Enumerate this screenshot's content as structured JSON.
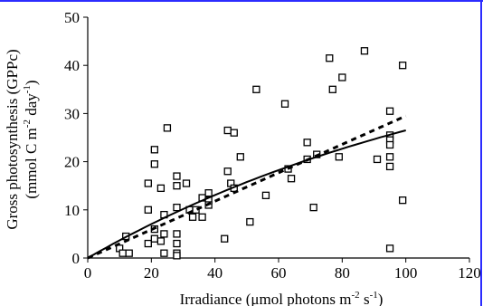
{
  "chart_data": {
    "type": "scatter",
    "xlabel_main": "Irradiance (μmol photons m",
    "xlabel_exp1": "-2",
    "xlabel_mid": " s",
    "xlabel_exp2": "-1",
    "xlabel_end": ")",
    "ylabel_line1": "Gross photosynthesis (GPPc)",
    "ylabel_line2_main": "(mmol C m",
    "ylabel_line2_exp1": "-2",
    "ylabel_line2_mid": " day",
    "ylabel_line2_exp2": "-1",
    "ylabel_line2_end": ")",
    "xlim": [
      0,
      120
    ],
    "ylim": [
      0,
      50
    ],
    "x_ticks": [
      0,
      20,
      40,
      60,
      80,
      100,
      120
    ],
    "y_ticks": [
      0,
      10,
      20,
      30,
      40,
      50
    ],
    "x_tick_labels": [
      "0",
      "20",
      "40",
      "60",
      "80",
      "100",
      "120"
    ],
    "y_tick_labels": [
      "0",
      "10",
      "20",
      "30",
      "40",
      "50"
    ],
    "grid": false,
    "legend": "none",
    "marker": "open-square",
    "points": [
      [
        10,
        2
      ],
      [
        11,
        1
      ],
      [
        12,
        4.5
      ],
      [
        13,
        1
      ],
      [
        19,
        15.5
      ],
      [
        19,
        10
      ],
      [
        19,
        3
      ],
      [
        21,
        4
      ],
      [
        21,
        6
      ],
      [
        21,
        19.5
      ],
      [
        21,
        22.5
      ],
      [
        23,
        14.5
      ],
      [
        23,
        3.5
      ],
      [
        24,
        5
      ],
      [
        24,
        9
      ],
      [
        24,
        1
      ],
      [
        25,
        27
      ],
      [
        28,
        17
      ],
      [
        28,
        15
      ],
      [
        28,
        10.5
      ],
      [
        28,
        5
      ],
      [
        28,
        3
      ],
      [
        28,
        1
      ],
      [
        28,
        0.5
      ],
      [
        31,
        15.5
      ],
      [
        32,
        10
      ],
      [
        33,
        8.5
      ],
      [
        34,
        10
      ],
      [
        36,
        8.5
      ],
      [
        36,
        12.5
      ],
      [
        38,
        13.5
      ],
      [
        38,
        12
      ],
      [
        38,
        11
      ],
      [
        43,
        4
      ],
      [
        44,
        26.5
      ],
      [
        44,
        18
      ],
      [
        45,
        15.5
      ],
      [
        46,
        14.5
      ],
      [
        46,
        26
      ],
      [
        48,
        21
      ],
      [
        51,
        7.5
      ],
      [
        53,
        35
      ],
      [
        56,
        13
      ],
      [
        62,
        32
      ],
      [
        63,
        18.5
      ],
      [
        64,
        16.5
      ],
      [
        69,
        24
      ],
      [
        69,
        20.5
      ],
      [
        71,
        10.5
      ],
      [
        72,
        21.5
      ],
      [
        76,
        41.5
      ],
      [
        77,
        35
      ],
      [
        79,
        21
      ],
      [
        80,
        37.5
      ],
      [
        87,
        43
      ],
      [
        91,
        20.5
      ],
      [
        95,
        30.5
      ],
      [
        95,
        25.5
      ],
      [
        95,
        24.5
      ],
      [
        95,
        23.5
      ],
      [
        95,
        21
      ],
      [
        95,
        19
      ],
      [
        95,
        2
      ],
      [
        99,
        40
      ],
      [
        99,
        12
      ]
    ],
    "fit_solid": {
      "style": "solid",
      "x_range": [
        0,
        100
      ],
      "curve": "saturating",
      "end_y": 26.5
    },
    "fit_dashed": {
      "style": "dashed",
      "x_range": [
        0,
        100
      ],
      "curve": "linear",
      "end_y": 29.5
    }
  }
}
